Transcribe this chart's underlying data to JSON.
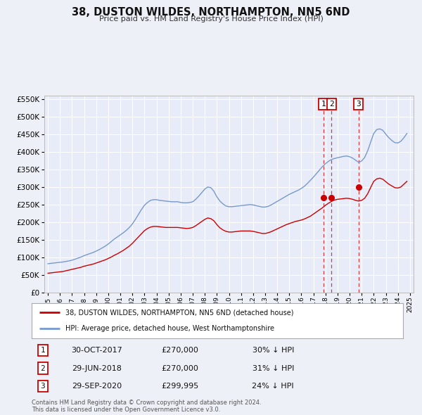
{
  "title": "38, DUSTON WILDES, NORTHAMPTON, NN5 6ND",
  "subtitle": "Price paid vs. HM Land Registry's House Price Index (HPI)",
  "red_label": "38, DUSTON WILDES, NORTHAMPTON, NN5 6ND (detached house)",
  "blue_label": "HPI: Average price, detached house, West Northamptonshire",
  "transactions": [
    {
      "num": 1,
      "date": "30-OCT-2017",
      "price": "£270,000",
      "pct": "30% ↓ HPI",
      "year": 2017.83
    },
    {
      "num": 2,
      "date": "29-JUN-2018",
      "price": "£270,000",
      "pct": "31% ↓ HPI",
      "year": 2018.5
    },
    {
      "num": 3,
      "date": "29-SEP-2020",
      "price": "£299,995",
      "pct": "24% ↓ HPI",
      "year": 2020.75
    }
  ],
  "transaction_values": [
    270000,
    270000,
    299995
  ],
  "footer": "Contains HM Land Registry data © Crown copyright and database right 2024.\nThis data is licensed under the Open Government Licence v3.0.",
  "bg_color": "#eef0f8",
  "plot_bg_color": "#e8ecf8",
  "grid_color": "#ffffff",
  "red_color": "#cc0000",
  "blue_color": "#7799cc",
  "ylim": [
    0,
    560000
  ],
  "yticks": [
    0,
    50000,
    100000,
    150000,
    200000,
    250000,
    300000,
    350000,
    400000,
    450000,
    500000,
    550000
  ],
  "xlim_start": 1994.7,
  "xlim_end": 2025.3,
  "years_hpi": [
    1995,
    1995.25,
    1995.5,
    1995.75,
    1996,
    1996.25,
    1996.5,
    1996.75,
    1997,
    1997.25,
    1997.5,
    1997.75,
    1998,
    1998.25,
    1998.5,
    1998.75,
    1999,
    1999.25,
    1999.5,
    1999.75,
    2000,
    2000.25,
    2000.5,
    2000.75,
    2001,
    2001.25,
    2001.5,
    2001.75,
    2002,
    2002.25,
    2002.5,
    2002.75,
    2003,
    2003.25,
    2003.5,
    2003.75,
    2004,
    2004.25,
    2004.5,
    2004.75,
    2005,
    2005.25,
    2005.5,
    2005.75,
    2006,
    2006.25,
    2006.5,
    2006.75,
    2007,
    2007.25,
    2007.5,
    2007.75,
    2008,
    2008.25,
    2008.5,
    2008.75,
    2009,
    2009.25,
    2009.5,
    2009.75,
    2010,
    2010.25,
    2010.5,
    2010.75,
    2011,
    2011.25,
    2011.5,
    2011.75,
    2012,
    2012.25,
    2012.5,
    2012.75,
    2013,
    2013.25,
    2013.5,
    2013.75,
    2014,
    2014.25,
    2014.5,
    2014.75,
    2015,
    2015.25,
    2015.5,
    2015.75,
    2016,
    2016.25,
    2016.5,
    2016.75,
    2017,
    2017.25,
    2017.5,
    2017.75,
    2018,
    2018.25,
    2018.5,
    2018.75,
    2019,
    2019.25,
    2019.5,
    2019.75,
    2020,
    2020.25,
    2020.5,
    2020.75,
    2021,
    2021.25,
    2021.5,
    2021.75,
    2022,
    2022.25,
    2022.5,
    2022.75,
    2023,
    2023.25,
    2023.5,
    2023.75,
    2024,
    2024.25,
    2024.5,
    2024.75
  ],
  "hpi_values": [
    82000,
    83000,
    84000,
    85000,
    86000,
    87000,
    88500,
    90000,
    92000,
    95000,
    98000,
    101000,
    105000,
    108000,
    111000,
    114000,
    118000,
    122000,
    127000,
    132000,
    138000,
    145000,
    152000,
    158000,
    164000,
    170000,
    177000,
    185000,
    195000,
    208000,
    222000,
    236000,
    248000,
    256000,
    262000,
    264000,
    264000,
    262000,
    261000,
    260000,
    259000,
    258000,
    258000,
    258000,
    256000,
    255000,
    255000,
    256000,
    258000,
    265000,
    274000,
    284000,
    294000,
    300000,
    298000,
    288000,
    272000,
    260000,
    252000,
    246000,
    244000,
    244000,
    245000,
    246000,
    247000,
    248000,
    249000,
    250000,
    249000,
    247000,
    245000,
    243000,
    243000,
    245000,
    249000,
    254000,
    259000,
    264000,
    269000,
    274000,
    279000,
    283000,
    287000,
    291000,
    296000,
    302000,
    310000,
    319000,
    328000,
    338000,
    348000,
    358000,
    366000,
    373000,
    378000,
    381000,
    383000,
    385000,
    387000,
    388000,
    386000,
    382000,
    376000,
    370000,
    374000,
    384000,
    403000,
    428000,
    452000,
    463000,
    465000,
    461000,
    450000,
    440000,
    432000,
    426000,
    425000,
    430000,
    440000,
    452000
  ],
  "years_red": [
    1995,
    1995.25,
    1995.5,
    1995.75,
    1996,
    1996.25,
    1996.5,
    1996.75,
    1997,
    1997.25,
    1997.5,
    1997.75,
    1998,
    1998.25,
    1998.5,
    1998.75,
    1999,
    1999.25,
    1999.5,
    1999.75,
    2000,
    2000.25,
    2000.5,
    2000.75,
    2001,
    2001.25,
    2001.5,
    2001.75,
    2002,
    2002.25,
    2002.5,
    2002.75,
    2003,
    2003.25,
    2003.5,
    2003.75,
    2004,
    2004.25,
    2004.5,
    2004.75,
    2005,
    2005.25,
    2005.5,
    2005.75,
    2006,
    2006.25,
    2006.5,
    2006.75,
    2007,
    2007.25,
    2007.5,
    2007.75,
    2008,
    2008.25,
    2008.5,
    2008.75,
    2009,
    2009.25,
    2009.5,
    2009.75,
    2010,
    2010.25,
    2010.5,
    2010.75,
    2011,
    2011.25,
    2011.5,
    2011.75,
    2012,
    2012.25,
    2012.5,
    2012.75,
    2013,
    2013.25,
    2013.5,
    2013.75,
    2014,
    2014.25,
    2014.5,
    2014.75,
    2015,
    2015.25,
    2015.5,
    2015.75,
    2016,
    2016.25,
    2016.5,
    2016.75,
    2017,
    2017.25,
    2017.5,
    2017.75,
    2018,
    2018.25,
    2018.5,
    2018.75,
    2019,
    2019.25,
    2019.5,
    2019.75,
    2020,
    2020.25,
    2020.5,
    2020.75,
    2021,
    2021.25,
    2021.5,
    2021.75,
    2022,
    2022.25,
    2022.5,
    2022.75,
    2023,
    2023.25,
    2023.5,
    2023.75,
    2024,
    2024.25,
    2024.5,
    2024.75
  ],
  "red_values": [
    55000,
    56000,
    57000,
    58000,
    59000,
    60000,
    62000,
    64000,
    66000,
    68000,
    70000,
    72000,
    75000,
    77000,
    79000,
    81000,
    84000,
    87000,
    90000,
    93000,
    97000,
    101000,
    106000,
    110000,
    115000,
    120000,
    126000,
    132000,
    140000,
    149000,
    158000,
    167000,
    176000,
    182000,
    186000,
    188000,
    188000,
    187000,
    186000,
    185000,
    185000,
    185000,
    185000,
    185000,
    184000,
    183000,
    182000,
    183000,
    185000,
    190000,
    196000,
    202000,
    208000,
    212000,
    210000,
    204000,
    193000,
    184000,
    178000,
    174000,
    172000,
    172000,
    173000,
    174000,
    175000,
    175000,
    175000,
    175000,
    174000,
    172000,
    170000,
    168000,
    168000,
    170000,
    173000,
    177000,
    181000,
    185000,
    189000,
    193000,
    196000,
    199000,
    202000,
    204000,
    206000,
    209000,
    213000,
    217000,
    223000,
    229000,
    235000,
    241000,
    248000,
    254000,
    259000,
    263000,
    265000,
    266000,
    267000,
    268000,
    267000,
    265000,
    262000,
    260000,
    262000,
    268000,
    281000,
    299000,
    316000,
    323000,
    325000,
    322000,
    315000,
    308000,
    303000,
    298000,
    297000,
    300000,
    308000,
    316000
  ]
}
